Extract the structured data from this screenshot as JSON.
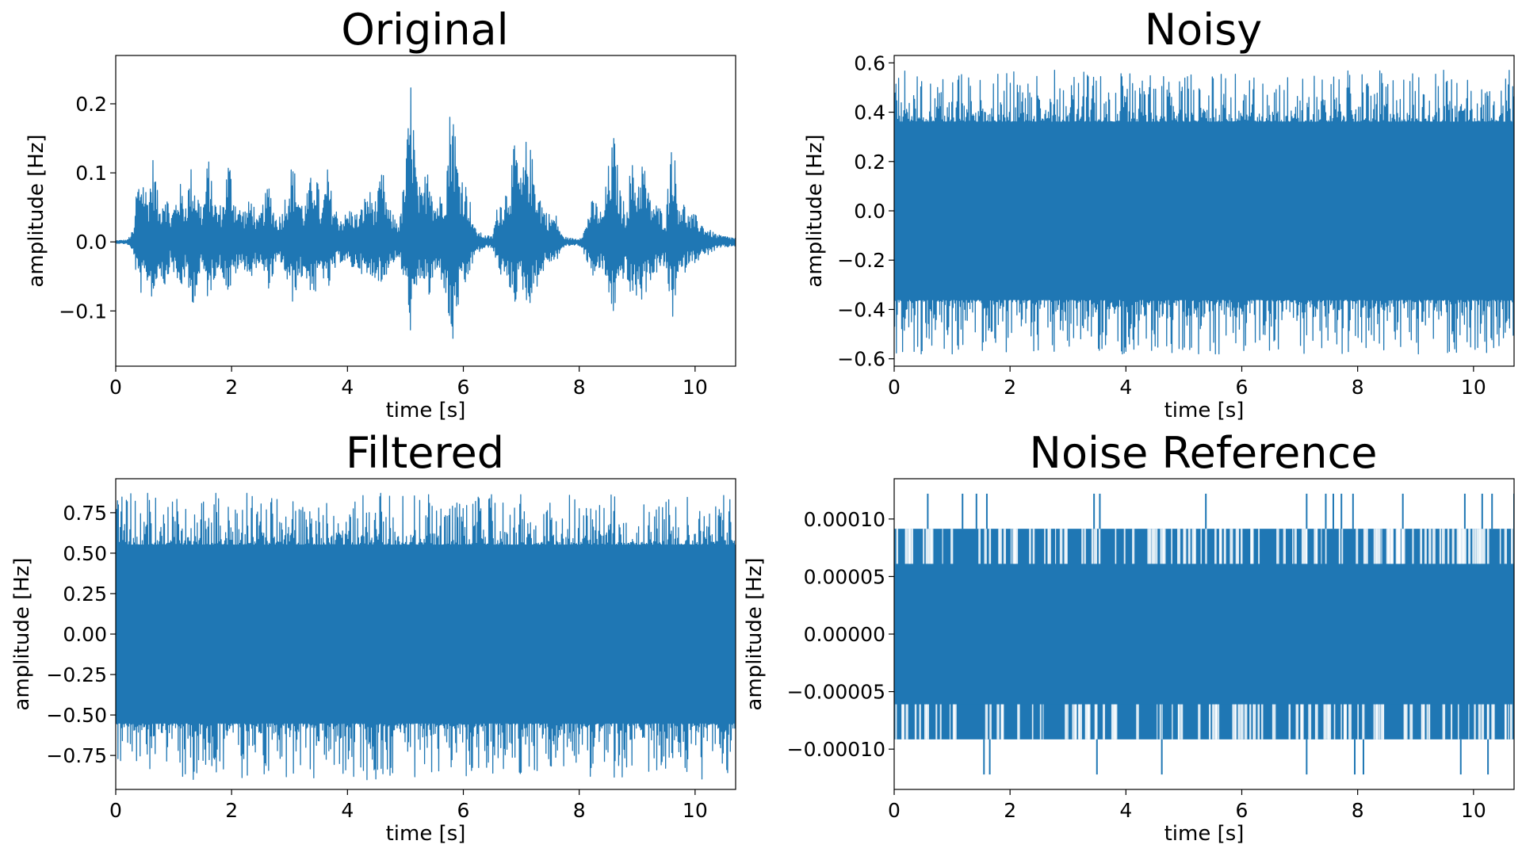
{
  "chart_data": [
    {
      "type": "line",
      "title": "Original",
      "xlabel": "time [s]",
      "ylabel": "amplitude [Hz]",
      "xlim": [
        0,
        10.7
      ],
      "ylim": [
        -0.18,
        0.27
      ],
      "xticks": [
        0,
        2,
        4,
        6,
        8,
        10
      ],
      "xtick_labels": [
        "0",
        "2",
        "4",
        "6",
        "8",
        "10"
      ],
      "yticks": [
        -0.1,
        0.0,
        0.1,
        0.2
      ],
      "ytick_labels": [
        "−0.1",
        "0.0",
        "0.1",
        "0.2"
      ],
      "grid": false,
      "color": "#1f77b4",
      "series": [
        {
          "signal": "speech",
          "envelope": {
            "x": [
              0,
              0.2,
              0.32,
              0.35,
              0.45,
              0.55,
              0.65,
              0.75,
              0.85,
              0.95,
              1.05,
              1.1,
              1.2,
              1.3,
              1.4,
              1.5,
              1.6,
              1.65,
              1.75,
              1.85,
              1.95,
              2.05,
              2.15,
              2.25,
              2.35,
              2.45,
              2.55,
              2.65,
              2.75,
              2.85,
              2.95,
              3.05,
              3.15,
              3.25,
              3.35,
              3.45,
              3.55,
              3.65,
              3.75,
              3.85,
              3.95,
              4.05,
              4.2,
              4.35,
              4.5,
              4.6,
              4.7,
              4.8,
              4.9,
              5.0,
              5.1,
              5.2,
              5.3,
              5.4,
              5.5,
              5.6,
              5.7,
              5.8,
              5.9,
              6.0,
              6.1,
              6.2,
              6.35,
              6.5,
              6.6,
              6.7,
              6.8,
              6.9,
              7.0,
              7.1,
              7.2,
              7.3,
              7.4,
              7.5,
              7.6,
              7.7,
              7.8,
              7.9,
              8.0,
              8.1,
              8.2,
              8.3,
              8.4,
              8.5,
              8.6,
              8.7,
              8.8,
              8.9,
              9.0,
              9.1,
              9.2,
              9.3,
              9.4,
              9.5,
              9.6,
              9.7,
              9.8,
              9.9,
              10.0,
              10.2,
              10.4,
              10.7
            ],
            "upper": [
              0.002,
              0.003,
              0.02,
              0.08,
              0.11,
              0.07,
              0.13,
              0.05,
              0.09,
              0.04,
              0.07,
              0.09,
              0.06,
              0.11,
              0.08,
              0.05,
              0.13,
              0.09,
              0.05,
              0.06,
              0.13,
              0.07,
              0.05,
              0.05,
              0.07,
              0.03,
              0.06,
              0.09,
              0.04,
              0.04,
              0.08,
              0.12,
              0.08,
              0.05,
              0.09,
              0.12,
              0.04,
              0.11,
              0.06,
              0.04,
              0.04,
              0.05,
              0.04,
              0.08,
              0.06,
              0.11,
              0.05,
              0.04,
              0.03,
              0.11,
              0.25,
              0.09,
              0.07,
              0.15,
              0.06,
              0.07,
              0.1,
              0.24,
              0.12,
              0.1,
              0.07,
              0.02,
              0.01,
              0.008,
              0.06,
              0.07,
              0.1,
              0.15,
              0.09,
              0.16,
              0.12,
              0.08,
              0.05,
              0.04,
              0.04,
              0.01,
              0.006,
              0.005,
              0.005,
              0.02,
              0.06,
              0.06,
              0.04,
              0.11,
              0.16,
              0.08,
              0.05,
              0.12,
              0.09,
              0.13,
              0.07,
              0.06,
              0.05,
              0.04,
              0.18,
              0.07,
              0.06,
              0.04,
              0.04,
              0.02,
              0.01,
              0.006
            ],
            "lower": [
              -0.002,
              -0.003,
              -0.02,
              -0.05,
              -0.08,
              -0.06,
              -0.09,
              -0.04,
              -0.07,
              -0.03,
              -0.06,
              -0.08,
              -0.05,
              -0.1,
              -0.07,
              -0.04,
              -0.09,
              -0.07,
              -0.04,
              -0.05,
              -0.08,
              -0.05,
              -0.04,
              -0.04,
              -0.06,
              -0.03,
              -0.05,
              -0.07,
              -0.04,
              -0.03,
              -0.06,
              -0.09,
              -0.06,
              -0.05,
              -0.07,
              -0.08,
              -0.04,
              -0.08,
              -0.05,
              -0.03,
              -0.03,
              -0.04,
              -0.04,
              -0.06,
              -0.05,
              -0.07,
              -0.04,
              -0.03,
              -0.03,
              -0.07,
              -0.14,
              -0.08,
              -0.05,
              -0.09,
              -0.05,
              -0.05,
              -0.08,
              -0.17,
              -0.1,
              -0.08,
              -0.05,
              -0.02,
              -0.01,
              -0.008,
              -0.04,
              -0.06,
              -0.07,
              -0.09,
              -0.06,
              -0.1,
              -0.08,
              -0.06,
              -0.04,
              -0.03,
              -0.03,
              -0.01,
              -0.006,
              -0.005,
              -0.005,
              -0.02,
              -0.05,
              -0.05,
              -0.04,
              -0.08,
              -0.11,
              -0.06,
              -0.05,
              -0.09,
              -0.08,
              -0.09,
              -0.06,
              -0.05,
              -0.04,
              -0.04,
              -0.12,
              -0.06,
              -0.05,
              -0.03,
              -0.03,
              -0.02,
              -0.01,
              -0.006
            ]
          }
        }
      ]
    },
    {
      "type": "line",
      "title": "Noisy",
      "xlabel": "time [s]",
      "ylabel": "amplitude [Hz]",
      "xlim": [
        0,
        10.7
      ],
      "ylim": [
        -0.63,
        0.63
      ],
      "xticks": [
        0,
        2,
        4,
        6,
        8,
        10
      ],
      "xtick_labels": [
        "0",
        "2",
        "4",
        "6",
        "8",
        "10"
      ],
      "yticks": [
        -0.6,
        -0.4,
        -0.2,
        0.0,
        0.2,
        0.4,
        0.6
      ],
      "ytick_labels": [
        "−0.6",
        "−0.4",
        "−0.2",
        "0.0",
        "0.2",
        "0.4",
        "0.6"
      ],
      "grid": false,
      "color": "#1f77b4",
      "series": [
        {
          "signal": "noise",
          "band": [
            -0.36,
            0.36
          ],
          "peaks": [
            -0.58,
            0.57
          ]
        }
      ]
    },
    {
      "type": "line",
      "title": "Filtered",
      "xlabel": "time [s]",
      "ylabel": "amplitude [Hz]",
      "xlim": [
        0,
        10.7
      ],
      "ylim": [
        -0.96,
        0.96
      ],
      "xticks": [
        0,
        2,
        4,
        6,
        8,
        10
      ],
      "xtick_labels": [
        "0",
        "2",
        "4",
        "6",
        "8",
        "10"
      ],
      "yticks": [
        -0.75,
        -0.5,
        -0.25,
        0.0,
        0.25,
        0.5,
        0.75
      ],
      "ytick_labels": [
        "−0.75",
        "−0.50",
        "−0.25",
        "0.00",
        "0.25",
        "0.50",
        "0.75"
      ],
      "grid": false,
      "color": "#1f77b4",
      "series": [
        {
          "signal": "noise",
          "band": [
            -0.55,
            0.55
          ],
          "peaks": [
            -0.9,
            0.87
          ]
        }
      ]
    },
    {
      "type": "line",
      "title": "Noise Reference",
      "xlabel": "time [s]",
      "ylabel": "amplitude [Hz]",
      "xlim": [
        0,
        10.7
      ],
      "ylim": [
        -0.000135,
        0.000135
      ],
      "xticks": [
        0,
        2,
        4,
        6,
        8,
        10
      ],
      "xtick_labels": [
        "0",
        "2",
        "4",
        "6",
        "8",
        "10"
      ],
      "yticks": [
        -0.0001,
        -5e-05,
        0.0,
        5e-05,
        0.0001
      ],
      "ytick_labels": [
        "−0.00010",
        "−0.00005",
        "0.00000",
        "0.00005",
        "0.00010"
      ],
      "grid": false,
      "color": "#1f77b4",
      "series": [
        {
          "signal": "quantized",
          "band": [
            -9.15e-05,
            9.15e-05
          ],
          "inner_level": 6.1e-05,
          "peaks": [
            -0.000122,
            0.000122
          ],
          "peak_times_upper": [
            0.58,
            1.18,
            1.42,
            1.6,
            3.45,
            3.55,
            5.38,
            7.12,
            7.45,
            7.58,
            7.72,
            7.92,
            8.78,
            9.85,
            10.15,
            10.32,
            10.7
          ],
          "peak_times_lower": [
            1.55,
            1.65,
            3.5,
            4.62,
            7.12,
            7.95,
            8.1,
            9.78,
            10.25
          ]
        }
      ]
    }
  ]
}
